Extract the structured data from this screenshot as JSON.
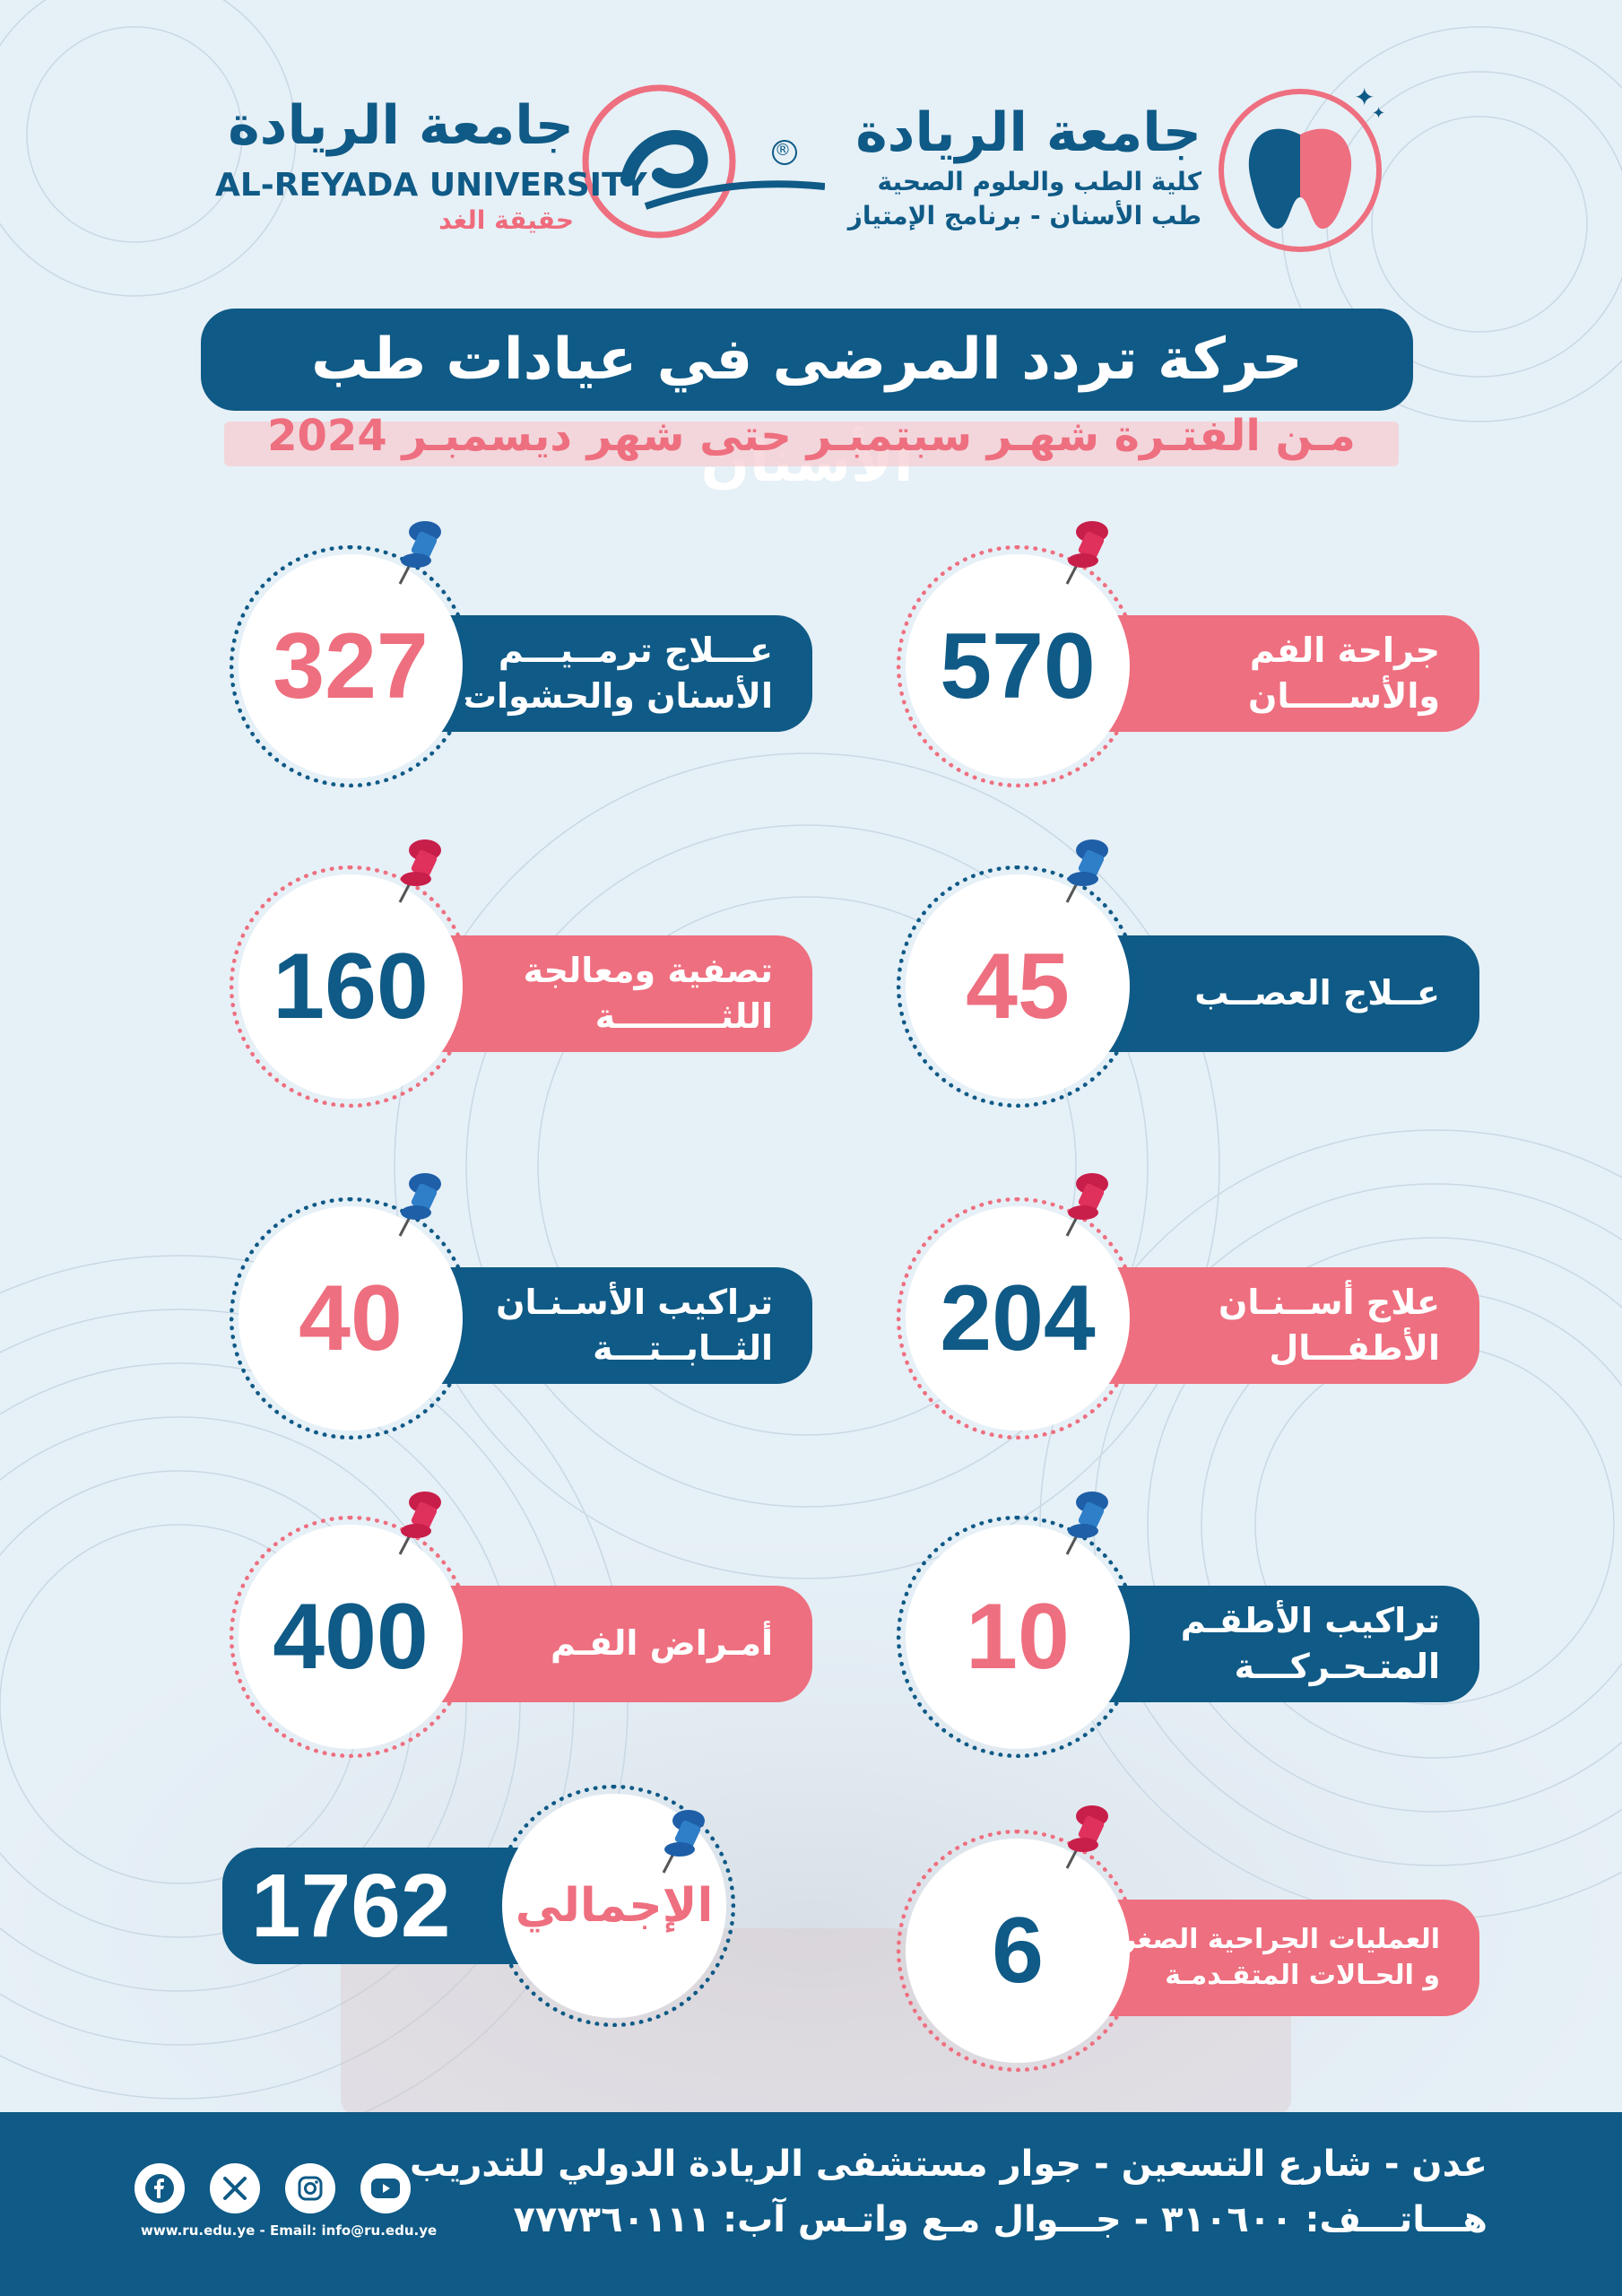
{
  "header": {
    "university_ar": "جامعة الريادة",
    "university_en": "AL-REYADA UNIVERSITY",
    "university_tagline": "حقيقة الغد",
    "registered_mark": "®",
    "college_ar": "جامعة الريادة",
    "college_line1": "كلية الطب والعلوم الصحية",
    "college_line2": "طب الأسنان - برنامج الإمتياز"
  },
  "title": "حركة تردد المرضى في عيادات طب الأسنان",
  "subtitle": "مـن الفتـرة شهـر سبتمبـر حتى شهر ديسمبـر 2024",
  "stats": [
    {
      "label1": "جراحة الفم",
      "label2": "والأســـــان",
      "value": "570"
    },
    {
      "label1": "عـــلاج ترمــيـــم",
      "label2": "الأسنان والحشوات",
      "value": "327"
    },
    {
      "label1": "عــلاج العصــب",
      "label2": "",
      "value": "45"
    },
    {
      "label1": "تصفية ومعالجة",
      "label2": "اللثـــــــــة",
      "value": "160"
    },
    {
      "label1": "علاج أســنـان",
      "label2": "الأطفـــال",
      "value": "204"
    },
    {
      "label1": "تراكيب الأسـنـان",
      "label2": "الثــابــتـــة",
      "value": "40"
    },
    {
      "label1": "تراكيب الأطقـم",
      "label2": "المتـحـركـــة",
      "value": "10"
    },
    {
      "label1": "أمـراض الفـم",
      "label2": "",
      "value": "400"
    },
    {
      "label1": "العمليات الجراحية الصغرى",
      "label2": "و الحـالات المتقـدمـة",
      "value": "6"
    }
  ],
  "total": {
    "label": "الإجمالي",
    "value": "1762"
  },
  "footer": {
    "address": "عدن - شارع التسعين - جوار مستشفى الريادة الدولي للتدريب",
    "phones": "هـــاتـــف: ٣١٠٦٠٠ - جـــوال مـع واتـس آب: ٧٧٧٣٦٠١١١",
    "web": "www.ru.edu.ye - Email: info@ru.edu.ye",
    "social_icons": [
      "facebook-icon",
      "x-icon",
      "instagram-icon",
      "youtube-icon"
    ]
  },
  "colors": {
    "blue": "#0f5a86",
    "pink": "#ee6f7f",
    "background": "#e6f0f7"
  }
}
